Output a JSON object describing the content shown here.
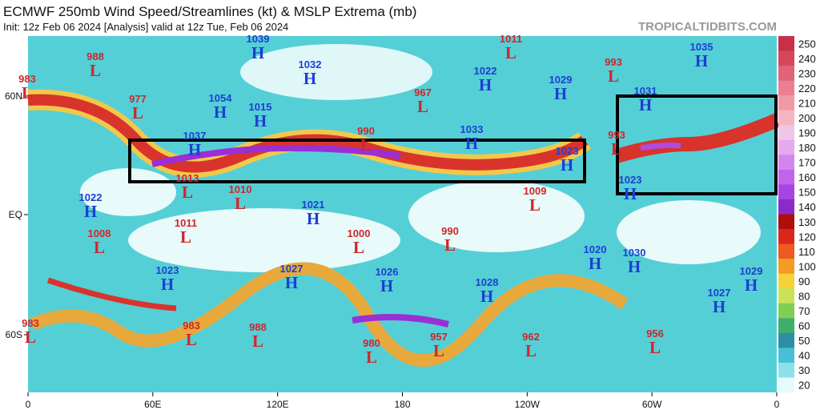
{
  "header": {
    "title": "ECMWF 250mb Wind Speed/Streamlines (kt) & MSLP Extrema (mb)",
    "subtitle": "Init: 12z Feb 06 2024   [Analysis]   valid at 12z Tue, Feb 06 2024",
    "watermark": "TROPICALTIDBITS.COM"
  },
  "lon_labels": [
    "0",
    "60E",
    "120E",
    "180",
    "120W",
    "60W",
    "0"
  ],
  "lat_labels": [
    "60N",
    "EQ",
    "60S"
  ],
  "colorbar_ticks": [
    "250",
    "240",
    "230",
    "220",
    "210",
    "200",
    "190",
    "180",
    "170",
    "160",
    "150",
    "140",
    "130",
    "120",
    "110",
    "100",
    "90",
    "80",
    "70",
    "60",
    "50",
    "40",
    "30",
    "20"
  ],
  "centers": [
    {
      "type": "L",
      "value": "988"
    },
    {
      "type": "L",
      "value": "983"
    },
    {
      "type": "L",
      "value": "977"
    },
    {
      "type": "H",
      "value": "1039"
    },
    {
      "type": "H",
      "value": "1032"
    },
    {
      "type": "H",
      "value": "1054"
    },
    {
      "type": "H",
      "value": "1015"
    },
    {
      "type": "L",
      "value": "1011"
    },
    {
      "type": "H",
      "value": "1022"
    },
    {
      "type": "H",
      "value": "1029"
    },
    {
      "type": "L",
      "value": "993"
    },
    {
      "type": "H",
      "value": "1035"
    },
    {
      "type": "L",
      "value": "967"
    },
    {
      "type": "L",
      "value": "990"
    },
    {
      "type": "H",
      "value": "1033"
    },
    {
      "type": "H",
      "value": "1037"
    },
    {
      "type": "H",
      "value": "1023"
    },
    {
      "type": "L",
      "value": "993"
    },
    {
      "type": "H",
      "value": "1031"
    },
    {
      "type": "H",
      "value": "1023"
    },
    {
      "type": "L",
      "value": "1013"
    },
    {
      "type": "L",
      "value": "1010"
    },
    {
      "type": "L",
      "value": "1009"
    },
    {
      "type": "H",
      "value": "1022"
    },
    {
      "type": "H",
      "value": "1021"
    },
    {
      "type": "L",
      "value": "1011"
    },
    {
      "type": "L",
      "value": "1008"
    },
    {
      "type": "L",
      "value": "1000"
    },
    {
      "type": "L",
      "value": "990"
    },
    {
      "type": "H",
      "value": "1020"
    },
    {
      "type": "H",
      "value": "1030"
    },
    {
      "type": "H",
      "value": "1023"
    },
    {
      "type": "H",
      "value": "1027"
    },
    {
      "type": "H",
      "value": "1026"
    },
    {
      "type": "H",
      "value": "1028"
    },
    {
      "type": "H",
      "value": "1027"
    },
    {
      "type": "H",
      "value": "1029"
    },
    {
      "type": "L",
      "value": "983"
    },
    {
      "type": "L",
      "value": "983"
    },
    {
      "type": "L",
      "value": "988"
    },
    {
      "type": "L",
      "value": "980"
    },
    {
      "type": "L",
      "value": "957"
    },
    {
      "type": "L",
      "value": "962"
    },
    {
      "type": "L",
      "value": "956"
    }
  ]
}
